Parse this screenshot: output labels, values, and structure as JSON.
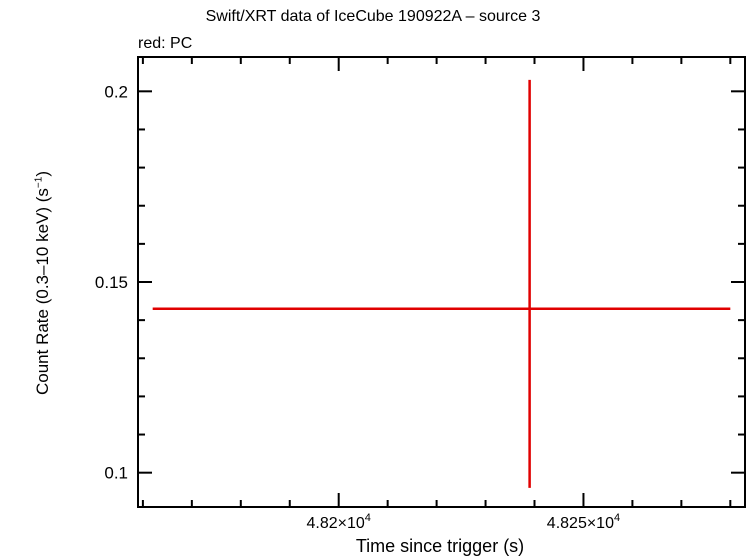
{
  "chart_data": {
    "type": "scatter",
    "title": "Swift/XRT data of IceCube 190922A – source 3",
    "subtitle": "red: PC",
    "xlabel": "Time since trigger (s)",
    "ylabel": "Count Rate (0.3–10 keV) (s",
    "ylabel_sup": "−1",
    "ylabel_suffix": ")",
    "xlim": [
      48159,
      48283
    ],
    "ylim": [
      0.091,
      0.209
    ],
    "x_ticks": [
      {
        "value": 48200,
        "mantissa": "4.82×10",
        "exp": "4"
      },
      {
        "value": 48250,
        "mantissa": "4.825×10",
        "exp": "4"
      }
    ],
    "x_minor_step": 10,
    "y_ticks": [
      {
        "value": 0.1,
        "label": "0.1"
      },
      {
        "value": 0.15,
        "label": "0.15"
      },
      {
        "value": 0.2,
        "label": "0.2"
      }
    ],
    "y_minor_step": 0.01,
    "series": [
      {
        "color": "#e00000",
        "points": [
          {
            "x": 48239,
            "y": 0.143,
            "xerr_minus": 77,
            "xerr_plus": 41,
            "yerr_minus": 0.047,
            "yerr_plus": 0.06
          }
        ]
      }
    ]
  }
}
